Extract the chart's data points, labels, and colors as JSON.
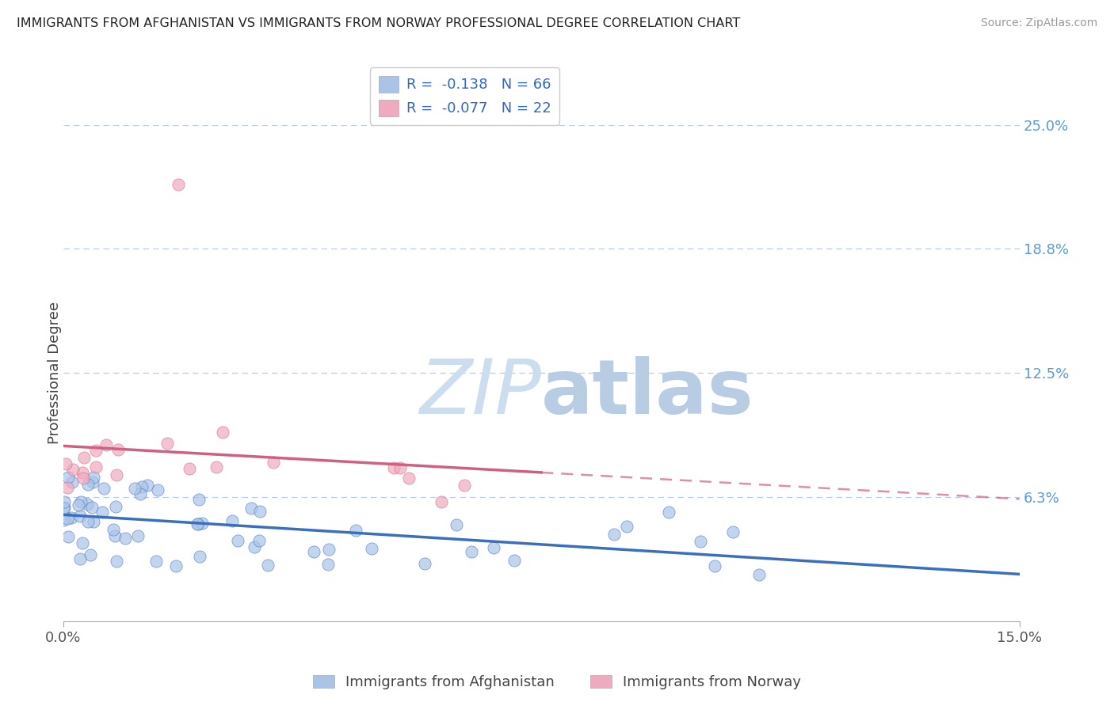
{
  "title": "IMMIGRANTS FROM AFGHANISTAN VS IMMIGRANTS FROM NORWAY PROFESSIONAL DEGREE CORRELATION CHART",
  "source": "Source: ZipAtlas.com",
  "ylabel": "Professional Degree",
  "x_min": 0.0,
  "x_max": 0.15,
  "y_min": 0.0,
  "y_max": 0.25,
  "y_ticks": [
    0.0,
    0.0625,
    0.125,
    0.1875,
    0.25
  ],
  "y_tick_labels_right": [
    "6.3%",
    "12.5%",
    "18.8%",
    "25.0%"
  ],
  "y_ticks_right": [
    0.0625,
    0.125,
    0.1875,
    0.25
  ],
  "legend_entry1": "R =  -0.138   N = 66",
  "legend_entry2": "R =  -0.077   N = 22",
  "legend_label1": "Immigrants from Afghanistan",
  "legend_label2": "Immigrants from Norway",
  "color_afghanistan": "#aac4e8",
  "color_norway": "#f0aac0",
  "line_color_afghanistan": "#3a6fbe",
  "line_color_norway": "#d06080",
  "watermark_zip_color": "#ccddf0",
  "watermark_atlas_color": "#b8cce4"
}
